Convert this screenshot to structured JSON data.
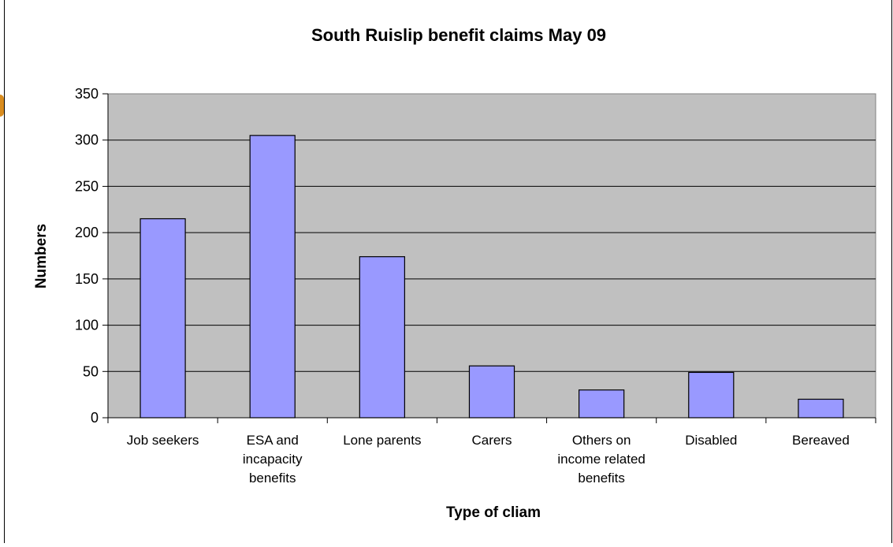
{
  "chart_data": {
    "type": "bar",
    "title": "South Ruislip benefit claims May 09",
    "xlabel": "Type of cliam",
    "ylabel": "Numbers",
    "categories": [
      [
        "Job seekers"
      ],
      [
        "ESA and",
        "incapacity",
        "benefits"
      ],
      [
        "Lone parents"
      ],
      [
        "Carers"
      ],
      [
        "Others on",
        "income related",
        "benefits"
      ],
      [
        "Disabled"
      ],
      [
        "Bereaved"
      ]
    ],
    "values": [
      215,
      305,
      174,
      56,
      30,
      49,
      20
    ],
    "ylim": [
      0,
      350
    ],
    "yticks": [
      0,
      50,
      100,
      150,
      200,
      250,
      300,
      350
    ],
    "grid": true,
    "colors": {
      "bar": "#9999ff",
      "plot_background": "#c0c0c0",
      "gridline": "#000000"
    }
  }
}
